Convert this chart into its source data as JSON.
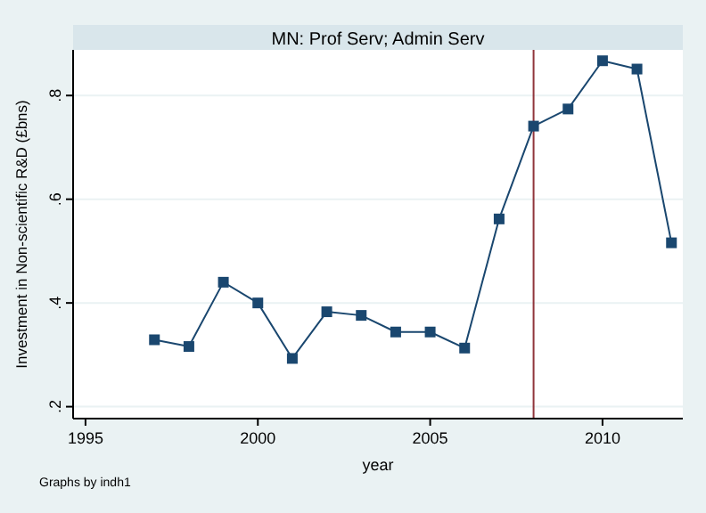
{
  "chart_data": {
    "type": "line",
    "title": "MN: Prof Serv; Admin Serv",
    "xlabel": "year",
    "ylabel": "Investment in Non-scientific R&D (£bns)",
    "x": [
      1997,
      1998,
      1999,
      2000,
      2001,
      2002,
      2003,
      2004,
      2005,
      2006,
      2007,
      2008,
      2009,
      2010,
      2011,
      2012
    ],
    "series": [
      {
        "color": "#1a476f",
        "values": [
          0.329,
          0.316,
          0.44,
          0.4,
          0.293,
          0.383,
          0.376,
          0.344,
          0.344,
          0.313,
          0.562,
          0.741,
          0.774,
          0.867,
          0.851,
          0.516
        ]
      }
    ],
    "xlim": [
      1994.64,
      2012.33
    ],
    "xticks": [
      1995,
      2000,
      2005,
      2010
    ],
    "ylim": [
      0.177,
      0.888
    ],
    "yticks": [
      {
        "value": 0.2,
        "label": ".2"
      },
      {
        "value": 0.4,
        "label": ".4"
      },
      {
        "value": 0.6,
        "label": ".6"
      },
      {
        "value": 0.8,
        "label": ".8"
      }
    ],
    "ref_lines": [
      {
        "axis": "x",
        "value": 2008,
        "color": "#90353b"
      }
    ],
    "annotations": [
      "Graphs by indh1"
    ],
    "grid": "y",
    "marker": "square",
    "line_style": "solid"
  }
}
